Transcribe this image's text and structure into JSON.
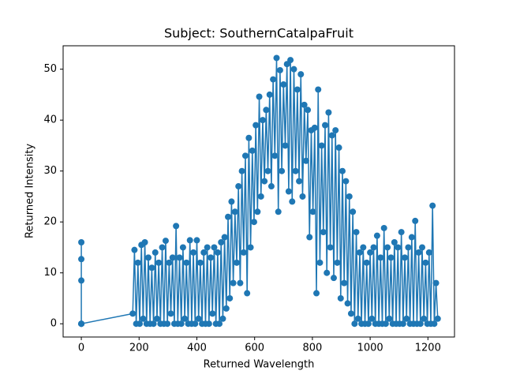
{
  "chart_data": {
    "type": "line",
    "title": "Subject: SouthernCatalpaFruit",
    "xlabel": "Returned Wavelength",
    "ylabel": "Returned Intensity",
    "xlim": [
      -63,
      1292
    ],
    "ylim": [
      -2.6,
      54.6
    ],
    "xticks": [
      0,
      200,
      400,
      600,
      800,
      1000,
      1200
    ],
    "yticks": [
      0,
      10,
      20,
      30,
      40,
      50
    ],
    "x": [
      0,
      0,
      0,
      0,
      0,
      0,
      0,
      178,
      184,
      190,
      196,
      202,
      208,
      214,
      220,
      226,
      232,
      238,
      244,
      250,
      256,
      262,
      268,
      274,
      280,
      286,
      292,
      298,
      304,
      310,
      316,
      322,
      328,
      334,
      340,
      346,
      352,
      358,
      364,
      370,
      376,
      382,
      388,
      394,
      400,
      406,
      412,
      418,
      424,
      430,
      436,
      442,
      448,
      454,
      460,
      466,
      472,
      478,
      484,
      490,
      496,
      502,
      508,
      514,
      520,
      526,
      532,
      538,
      544,
      550,
      556,
      562,
      568,
      574,
      580,
      586,
      592,
      598,
      604,
      610,
      616,
      622,
      628,
      634,
      640,
      646,
      652,
      658,
      664,
      670,
      676,
      682,
      688,
      694,
      700,
      706,
      712,
      718,
      724,
      730,
      736,
      742,
      748,
      754,
      760,
      766,
      772,
      778,
      784,
      790,
      796,
      802,
      808,
      814,
      820,
      826,
      832,
      838,
      844,
      850,
      856,
      862,
      868,
      874,
      880,
      886,
      892,
      898,
      904,
      910,
      916,
      922,
      928,
      934,
      940,
      946,
      952,
      958,
      964,
      970,
      976,
      982,
      988,
      994,
      1000,
      1006,
      1012,
      1018,
      1024,
      1030,
      1036,
      1042,
      1048,
      1054,
      1060,
      1066,
      1072,
      1078,
      1084,
      1090,
      1096,
      1102,
      1108,
      1114,
      1120,
      1126,
      1132,
      1138,
      1144,
      1150,
      1156,
      1162,
      1168,
      1174,
      1180,
      1186,
      1192,
      1198,
      1204,
      1210,
      1216,
      1222,
      1228,
      1234
    ],
    "series": [
      {
        "color": "#1f77b4",
        "values": [
          0,
          16,
          0,
          12.7,
          0,
          8.5,
          0,
          2,
          14.5,
          0,
          12,
          0,
          15.5,
          1,
          16,
          0,
          13,
          0,
          11,
          0,
          14,
          1,
          12,
          0,
          15,
          0,
          16.3,
          0,
          12,
          2,
          13,
          0,
          19.2,
          0,
          13,
          0,
          15,
          1,
          12,
          0,
          16.4,
          0,
          14,
          0,
          16.4,
          1,
          12,
          0,
          14,
          0,
          15,
          0,
          13,
          2,
          15,
          0,
          14,
          0,
          16,
          1,
          17,
          3,
          21,
          5,
          24,
          8,
          22,
          12,
          27,
          8,
          30,
          14,
          33,
          6,
          36.5,
          15,
          34,
          20,
          39,
          22,
          44.6,
          25,
          40,
          28,
          42,
          30,
          45,
          27,
          48,
          33,
          52.2,
          22,
          49.8,
          30,
          47,
          35,
          51,
          26,
          51.8,
          24,
          50,
          30,
          46,
          28,
          49,
          25,
          43,
          32,
          42,
          17,
          38,
          22,
          38.5,
          6,
          46,
          12,
          35,
          18,
          39,
          10,
          41.5,
          15,
          37,
          9,
          38,
          12,
          34.6,
          5,
          30,
          8,
          28,
          4,
          25,
          2,
          22,
          0,
          18,
          1,
          14,
          0,
          15,
          0,
          12,
          0,
          14,
          1,
          15,
          0,
          17.3,
          0,
          13,
          0,
          18.8,
          0,
          15,
          1,
          13,
          0,
          16,
          0,
          15,
          0,
          18,
          0,
          13,
          1,
          15,
          0,
          17,
          0,
          20.2,
          0,
          14,
          0,
          15,
          1,
          12,
          0,
          14,
          0,
          23.2,
          0,
          8,
          1
        ]
      }
    ]
  }
}
